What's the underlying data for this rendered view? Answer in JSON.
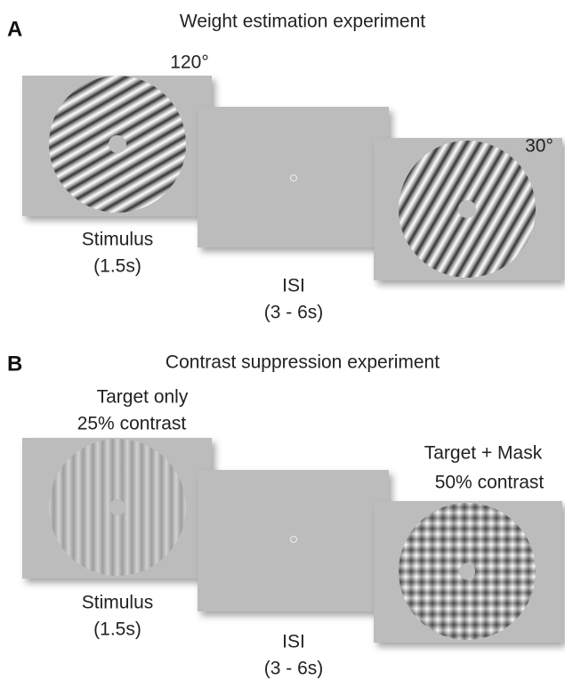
{
  "panels": [
    {
      "label": "A",
      "title": "Weight estimation experiment",
      "stimulus_note": "120°",
      "stimulus_caption": "Stimulus",
      "stimulus_time": "(1.5s)",
      "isi_caption": "ISI",
      "isi_time": "(3 - 6s)",
      "second_note": "30°"
    },
    {
      "label": "B",
      "title": "Contrast suppression experiment",
      "stimulus_note": [
        "Target only",
        "25% contrast"
      ],
      "stimulus_caption": "Stimulus",
      "stimulus_time": "(1.5s)",
      "isi_caption": "ISI",
      "isi_time": "(3 - 6s)",
      "second_note": [
        "Target + Mask",
        "50% contrast"
      ]
    }
  ]
}
